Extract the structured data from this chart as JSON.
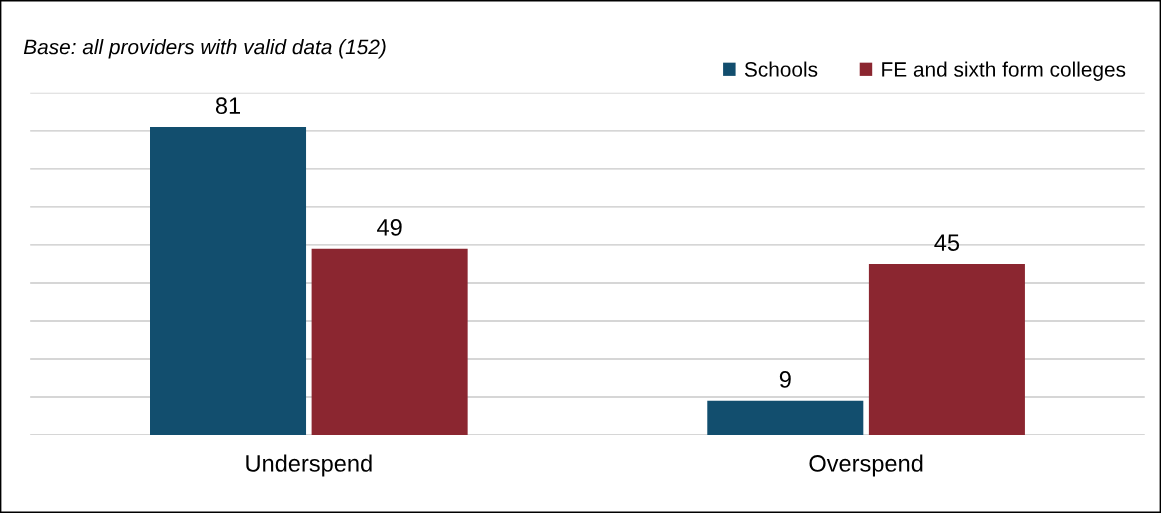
{
  "chart_data": {
    "type": "bar",
    "title": "Base: all providers with valid data (152)",
    "categories": [
      "Underspend",
      "Overspend"
    ],
    "series": [
      {
        "name": "Schools",
        "color": "#124e6e",
        "values": [
          81,
          9
        ]
      },
      {
        "name": "FE and sixth form colleges",
        "color": "#8b2630",
        "values": [
          49,
          45
        ]
      }
    ],
    "ylim": [
      0,
      90
    ],
    "yticks": [
      {
        "value": 0,
        "label": null
      },
      {
        "value": 10,
        "label": null
      },
      {
        "value": 20,
        "label": null
      },
      {
        "value": 30,
        "label": null
      },
      {
        "value": 40,
        "label": null
      },
      {
        "value": 50,
        "label": null
      },
      {
        "value": 60,
        "label": null
      },
      {
        "value": 70,
        "label": null
      },
      {
        "value": 80,
        "label": null
      },
      {
        "value": 90,
        "label": null
      }
    ],
    "tick_labels": "x",
    "grid": "y",
    "legend": "top right",
    "data_labels": true
  }
}
